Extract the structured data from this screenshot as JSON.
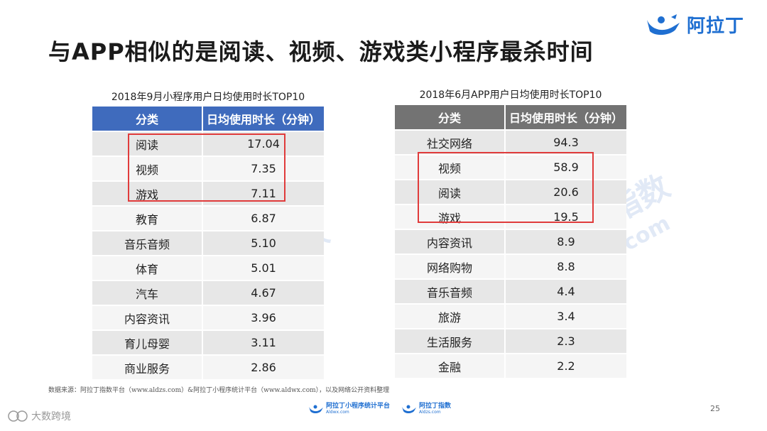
{
  "title": "与APP相似的是阅读、视频、游戏类小程序最杀时间",
  "brand": {
    "name": "阿拉丁"
  },
  "watermarks": [
    {
      "text": "阿拉丁指数"
    },
    {
      "text": "Aldzs.com"
    },
    {
      "text": "阿拉丁指数"
    },
    {
      "text": "Aldzs.com"
    }
  ],
  "left_table": {
    "caption": "2018年9月小程序用户日均使用时长TOP10",
    "header": [
      "分类",
      "日均使用时长（分钟）"
    ],
    "rows": [
      [
        "阅读",
        "17.04"
      ],
      [
        "视频",
        "7.35"
      ],
      [
        "游戏",
        "7.11"
      ],
      [
        "教育",
        "6.87"
      ],
      [
        "音乐音频",
        "5.10"
      ],
      [
        "体育",
        "5.01"
      ],
      [
        "汽车",
        "4.67"
      ],
      [
        "内容资讯",
        "3.96"
      ],
      [
        "育儿母婴",
        "3.11"
      ],
      [
        "商业服务",
        "2.86"
      ]
    ]
  },
  "right_table": {
    "caption": "2018年6月APP用户日均使用时长TOP10",
    "header": [
      "分类",
      "日均使用时长（分钟）"
    ],
    "rows": [
      [
        "社交网络",
        "94.3"
      ],
      [
        "视频",
        "58.9"
      ],
      [
        "阅读",
        "20.6"
      ],
      [
        "游戏",
        "19.5"
      ],
      [
        "内容资讯",
        "8.9"
      ],
      [
        "网络购物",
        "8.8"
      ],
      [
        "音乐音频",
        "4.4"
      ],
      [
        "旅游",
        "3.4"
      ],
      [
        "生活服务",
        "2.3"
      ],
      [
        "金融",
        "2.2"
      ]
    ]
  },
  "source": "数据来源：阿拉丁指数平台（www.aldzs.com）&阿拉丁小程序统计平台（www.aldwx.com），以及网络公开资料整理",
  "footer_logos": [
    {
      "name": "阿拉丁小程序统计平台",
      "sub": "Aldwx.com"
    },
    {
      "name": "阿拉丁指数",
      "sub": "Aldzs.com"
    }
  ],
  "page_number": "25",
  "corner_mark": "大数跨境",
  "colors": {
    "left_header": "#3f6bbd",
    "right_header": "#737373",
    "highlight": "#e03b3b",
    "brand": "#1f6fd1"
  }
}
